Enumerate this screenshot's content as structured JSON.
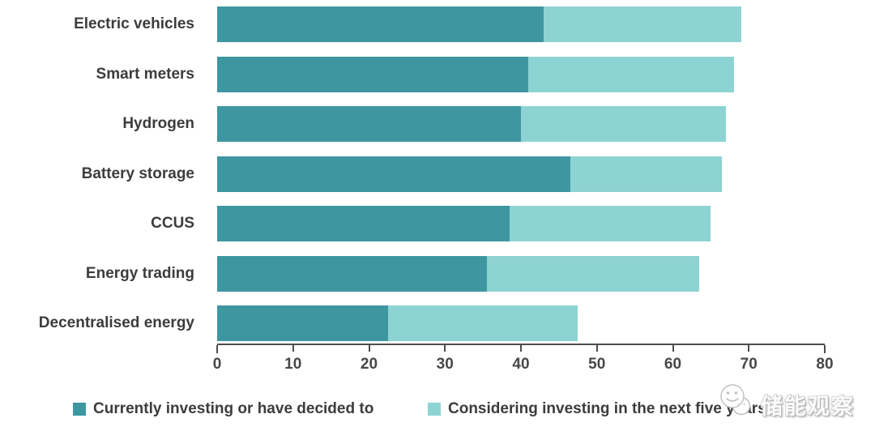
{
  "chart_data": {
    "type": "bar",
    "orientation": "horizontal",
    "stacked": true,
    "title": "",
    "xlabel": "",
    "ylabel": "",
    "categories": [
      "Electric vehicles",
      "Smart meters",
      "Hydrogen",
      "Battery storage",
      "CCUS",
      "Energy trading",
      "Decentralised energy"
    ],
    "series": [
      {
        "name": "Currently investing or have decided to",
        "color": "#3e97a0",
        "values": [
          43,
          41,
          40,
          46.5,
          38.5,
          35.5,
          22.5
        ]
      },
      {
        "name": "Considering investing in the next five years",
        "color": "#8ed3d4",
        "values": [
          26,
          27,
          27,
          20,
          26.5,
          28,
          25
        ]
      }
    ],
    "xlim": [
      0,
      80
    ],
    "xticks": [
      0,
      10,
      20,
      30,
      40,
      50,
      60,
      70,
      80
    ],
    "grid": false,
    "legend_position": "bottom"
  },
  "watermark": {
    "text": "储能观察",
    "icon": "wechat-smiley-logo-icon"
  },
  "colors": {
    "axis": "#4d4d4d",
    "label_text": "#3c3c3c",
    "background": "#ffffff"
  }
}
